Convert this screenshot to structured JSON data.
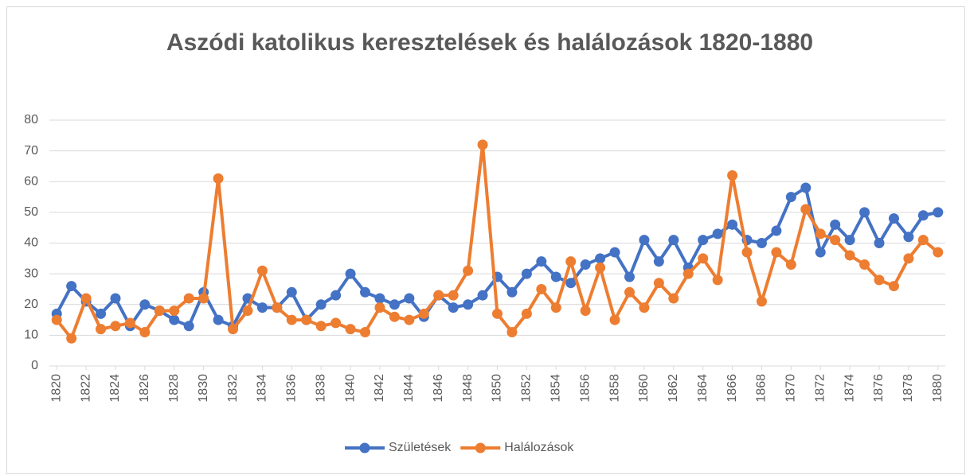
{
  "chart_data": {
    "type": "line",
    "title": "Aszódi katolikus keresztelések és halálozások 1820-1880",
    "x": [
      1820,
      1821,
      1822,
      1823,
      1824,
      1825,
      1826,
      1827,
      1828,
      1829,
      1830,
      1831,
      1832,
      1833,
      1834,
      1835,
      1836,
      1837,
      1838,
      1839,
      1840,
      1841,
      1842,
      1843,
      1844,
      1845,
      1846,
      1847,
      1848,
      1849,
      1850,
      1851,
      1852,
      1853,
      1854,
      1855,
      1856,
      1857,
      1858,
      1859,
      1860,
      1861,
      1862,
      1863,
      1864,
      1865,
      1866,
      1867,
      1868,
      1869,
      1870,
      1871,
      1872,
      1873,
      1874,
      1875,
      1876,
      1877,
      1878,
      1879,
      1880
    ],
    "series": [
      {
        "name": "Születések",
        "color": "#4472c4",
        "values": [
          17,
          26,
          21,
          17,
          22,
          13,
          20,
          18,
          15,
          13,
          24,
          15,
          13,
          22,
          19,
          19,
          24,
          15,
          20,
          23,
          30,
          24,
          22,
          20,
          22,
          16,
          23,
          19,
          20,
          23,
          29,
          24,
          30,
          34,
          29,
          27,
          33,
          35,
          37,
          29,
          41,
          34,
          41,
          32,
          41,
          43,
          46,
          41,
          40,
          44,
          55,
          58,
          37,
          46,
          41,
          50,
          40,
          48,
          42,
          49,
          50
        ]
      },
      {
        "name": "Halálozások",
        "color": "#ed7d31",
        "values": [
          15,
          9,
          22,
          12,
          13,
          14,
          11,
          18,
          18,
          22,
          22,
          61,
          12,
          18,
          31,
          19,
          15,
          15,
          13,
          14,
          12,
          11,
          19,
          16,
          15,
          17,
          23,
          23,
          31,
          72,
          17,
          11,
          17,
          25,
          19,
          34,
          18,
          32,
          15,
          24,
          19,
          27,
          22,
          30,
          35,
          28,
          62,
          37,
          21,
          37,
          33,
          51,
          43,
          41,
          36,
          33,
          28,
          26,
          35,
          41,
          37
        ]
      }
    ],
    "xlim": [
      1819.5,
      1880.5
    ],
    "xticks": [
      1820,
      1822,
      1824,
      1826,
      1828,
      1830,
      1832,
      1834,
      1836,
      1838,
      1840,
      1842,
      1844,
      1846,
      1848,
      1850,
      1852,
      1854,
      1856,
      1858,
      1860,
      1862,
      1864,
      1866,
      1868,
      1870,
      1872,
      1874,
      1876,
      1878,
      1880
    ],
    "ylim": [
      0,
      80
    ],
    "yticks": [
      0,
      10,
      20,
      30,
      40,
      50,
      60,
      70,
      80
    ],
    "grid": true,
    "legend": "bottom"
  }
}
